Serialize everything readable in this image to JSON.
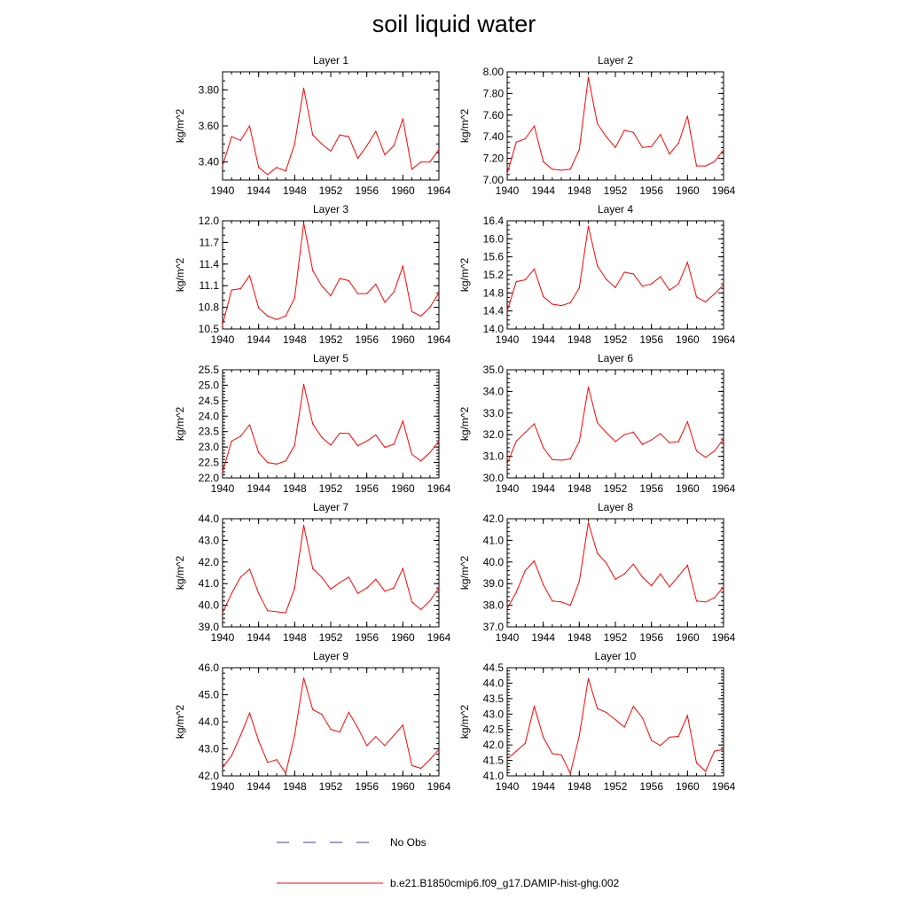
{
  "title": "soil liquid water",
  "legend": [
    {
      "label": "No Obs",
      "color": "#3b3bb8",
      "style": "dashed"
    },
    {
      "label": "b.e21.B1850cmip6.f09_g17.DAMIP-hist-ghg.002",
      "color": "#ff0000",
      "style": "solid"
    }
  ],
  "chart_data": [
    {
      "type": "line",
      "title": "Layer 1",
      "ylabel": "kg/m^2",
      "xlim": [
        1940,
        1964
      ],
      "ylim": [
        3.3,
        3.9
      ],
      "yticks": [
        3.4,
        3.6,
        3.8
      ],
      "ytick_labels": [
        "3.40",
        "3.60",
        "3.80"
      ],
      "yminor": 0.05,
      "xticks": [
        1940,
        1944,
        1948,
        1952,
        1956,
        1960,
        1964
      ],
      "xtick_labels": [
        "1940",
        "1944",
        "1948",
        "1952",
        "1956",
        "1960",
        "1964"
      ],
      "x": [
        1940,
        1941,
        1942,
        1943,
        1944,
        1945,
        1946,
        1947,
        1948,
        1949,
        1950,
        1951,
        1952,
        1953,
        1954,
        1955,
        1956,
        1957,
        1958,
        1959,
        1960,
        1961,
        1962,
        1963,
        1964
      ],
      "series": [
        {
          "name": "b.e21.B1850cmip6.f09_g17.DAMIP-hist-ghg.002",
          "color": "#ff0000",
          "values": [
            3.38,
            3.54,
            3.52,
            3.6,
            3.37,
            3.33,
            3.37,
            3.35,
            3.5,
            3.81,
            3.55,
            3.5,
            3.46,
            3.55,
            3.54,
            3.42,
            3.49,
            3.57,
            3.44,
            3.49,
            3.64,
            3.36,
            3.4,
            3.4,
            3.47
          ]
        }
      ]
    },
    {
      "type": "line",
      "title": "Layer 2",
      "ylabel": "kg/m^2",
      "xlim": [
        1940,
        1964
      ],
      "ylim": [
        7.0,
        8.0
      ],
      "yticks": [
        7.0,
        7.2,
        7.4,
        7.6,
        7.8,
        8.0
      ],
      "ytick_labels": [
        "7.00",
        "7.20",
        "7.40",
        "7.60",
        "7.80",
        "8.00"
      ],
      "yminor": 0.05,
      "xticks": [
        1940,
        1944,
        1948,
        1952,
        1956,
        1960,
        1964
      ],
      "xtick_labels": [
        "1940",
        "1944",
        "1948",
        "1952",
        "1956",
        "1960",
        "1964"
      ],
      "x": [
        1940,
        1941,
        1942,
        1943,
        1944,
        1945,
        1946,
        1947,
        1948,
        1949,
        1950,
        1951,
        1952,
        1953,
        1954,
        1955,
        1956,
        1957,
        1958,
        1959,
        1960,
        1961,
        1962,
        1963,
        1964
      ],
      "series": [
        {
          "name": "b.e21.B1850cmip6.f09_g17.DAMIP-hist-ghg.002",
          "color": "#ff0000",
          "values": [
            7.06,
            7.35,
            7.38,
            7.5,
            7.17,
            7.1,
            7.09,
            7.1,
            7.28,
            7.95,
            7.52,
            7.4,
            7.3,
            7.46,
            7.44,
            7.3,
            7.31,
            7.42,
            7.24,
            7.34,
            7.59,
            7.13,
            7.13,
            7.17,
            7.28
          ]
        }
      ]
    },
    {
      "type": "line",
      "title": "Layer 3",
      "ylabel": "kg/m^2",
      "xlim": [
        1940,
        1964
      ],
      "ylim": [
        10.5,
        12.0
      ],
      "yticks": [
        10.5,
        10.8,
        11.1,
        11.4,
        11.7,
        12.0
      ],
      "ytick_labels": [
        "10.5",
        "10.8",
        "11.1",
        "11.4",
        "11.7",
        "12.0"
      ],
      "yminor": 0.1,
      "xticks": [
        1940,
        1944,
        1948,
        1952,
        1956,
        1960,
        1964
      ],
      "xtick_labels": [
        "1940",
        "1944",
        "1948",
        "1952",
        "1956",
        "1960",
        "1964"
      ],
      "x": [
        1940,
        1941,
        1942,
        1943,
        1944,
        1945,
        1946,
        1947,
        1948,
        1949,
        1950,
        1951,
        1952,
        1953,
        1954,
        1955,
        1956,
        1957,
        1958,
        1959,
        1960,
        1961,
        1962,
        1963,
        1964
      ],
      "series": [
        {
          "name": "b.e21.B1850cmip6.f09_g17.DAMIP-hist-ghg.002",
          "color": "#ff0000",
          "values": [
            10.56,
            11.04,
            11.06,
            11.24,
            10.79,
            10.68,
            10.63,
            10.68,
            10.93,
            11.97,
            11.31,
            11.1,
            10.96,
            11.2,
            11.17,
            10.99,
            10.99,
            11.12,
            10.87,
            11.01,
            11.37,
            10.74,
            10.68,
            10.8,
            11.0
          ]
        }
      ]
    },
    {
      "type": "line",
      "title": "Layer 4",
      "ylabel": "kg/m^2",
      "xlim": [
        1940,
        1964
      ],
      "ylim": [
        14.0,
        16.4
      ],
      "yticks": [
        14.0,
        14.4,
        14.8,
        15.2,
        15.6,
        16.0,
        16.4
      ],
      "ytick_labels": [
        "14.0",
        "14.4",
        "14.8",
        "15.2",
        "15.6",
        "16.0",
        "16.4"
      ],
      "yminor": 0.1,
      "xticks": [
        1940,
        1944,
        1948,
        1952,
        1956,
        1960,
        1964
      ],
      "xtick_labels": [
        "1940",
        "1944",
        "1948",
        "1952",
        "1956",
        "1960",
        "1964"
      ],
      "x": [
        1940,
        1941,
        1942,
        1943,
        1944,
        1945,
        1946,
        1947,
        1948,
        1949,
        1950,
        1951,
        1952,
        1953,
        1954,
        1955,
        1956,
        1957,
        1958,
        1959,
        1960,
        1961,
        1962,
        1963,
        1964
      ],
      "series": [
        {
          "name": "b.e21.B1850cmip6.f09_g17.DAMIP-hist-ghg.002",
          "color": "#ff0000",
          "values": [
            14.4,
            15.05,
            15.09,
            15.33,
            14.72,
            14.55,
            14.52,
            14.58,
            14.91,
            16.28,
            15.4,
            15.1,
            14.92,
            15.26,
            15.22,
            14.95,
            15.0,
            15.16,
            14.86,
            15.0,
            15.48,
            14.71,
            14.6,
            14.78,
            14.98
          ]
        }
      ]
    },
    {
      "type": "line",
      "title": "Layer 5",
      "ylabel": "kg/m^2",
      "xlim": [
        1940,
        1964
      ],
      "ylim": [
        22.0,
        25.5
      ],
      "yticks": [
        22.0,
        22.5,
        23.0,
        23.5,
        24.0,
        24.5,
        25.0,
        25.5
      ],
      "ytick_labels": [
        "22.0",
        "22.5",
        "23.0",
        "23.5",
        "24.0",
        "24.5",
        "25.0",
        "25.5"
      ],
      "yminor": 0.1,
      "xticks": [
        1940,
        1944,
        1948,
        1952,
        1956,
        1960,
        1964
      ],
      "xtick_labels": [
        "1940",
        "1944",
        "1948",
        "1952",
        "1956",
        "1960",
        "1964"
      ],
      "x": [
        1940,
        1941,
        1942,
        1943,
        1944,
        1945,
        1946,
        1947,
        1948,
        1949,
        1950,
        1951,
        1952,
        1953,
        1954,
        1955,
        1956,
        1957,
        1958,
        1959,
        1960,
        1961,
        1962,
        1963,
        1964
      ],
      "series": [
        {
          "name": "b.e21.B1850cmip6.f09_g17.DAMIP-hist-ghg.002",
          "color": "#ff0000",
          "values": [
            22.2,
            23.19,
            23.35,
            23.72,
            22.82,
            22.5,
            22.45,
            22.55,
            23.06,
            25.03,
            23.75,
            23.32,
            23.06,
            23.45,
            23.44,
            23.04,
            23.19,
            23.39,
            22.99,
            23.09,
            23.84,
            22.76,
            22.55,
            22.82,
            23.19
          ]
        }
      ]
    },
    {
      "type": "line",
      "title": "Layer 6",
      "ylabel": "kg/m^2",
      "xlim": [
        1940,
        1964
      ],
      "ylim": [
        30.0,
        35.0
      ],
      "yticks": [
        30.0,
        31.0,
        32.0,
        33.0,
        34.0,
        35.0
      ],
      "ytick_labels": [
        "30.0",
        "31.0",
        "32.0",
        "33.0",
        "34.0",
        "35.0"
      ],
      "yminor": 0.2,
      "xticks": [
        1940,
        1944,
        1948,
        1952,
        1956,
        1960,
        1964
      ],
      "xtick_labels": [
        "1940",
        "1944",
        "1948",
        "1952",
        "1956",
        "1960",
        "1964"
      ],
      "x": [
        1940,
        1941,
        1942,
        1943,
        1944,
        1945,
        1946,
        1947,
        1948,
        1949,
        1950,
        1951,
        1952,
        1953,
        1954,
        1955,
        1956,
        1957,
        1958,
        1959,
        1960,
        1961,
        1962,
        1963,
        1964
      ],
      "series": [
        {
          "name": "b.e21.B1850cmip6.f09_g17.DAMIP-hist-ghg.002",
          "color": "#ff0000",
          "values": [
            30.65,
            31.7,
            32.1,
            32.5,
            31.4,
            30.85,
            30.82,
            30.88,
            31.68,
            34.2,
            32.55,
            32.1,
            31.68,
            32.0,
            32.12,
            31.55,
            31.76,
            32.05,
            31.63,
            31.68,
            32.6,
            31.25,
            30.95,
            31.25,
            31.8
          ]
        }
      ]
    },
    {
      "type": "line",
      "title": "Layer 7",
      "ylabel": "kg/m^2",
      "xlim": [
        1940,
        1964
      ],
      "ylim": [
        39.0,
        44.0
      ],
      "yticks": [
        39.0,
        40.0,
        41.0,
        42.0,
        43.0,
        44.0
      ],
      "ytick_labels": [
        "39.0",
        "40.0",
        "41.0",
        "42.0",
        "43.0",
        "44.0"
      ],
      "yminor": 0.2,
      "xticks": [
        1940,
        1944,
        1948,
        1952,
        1956,
        1960,
        1964
      ],
      "xtick_labels": [
        "1940",
        "1944",
        "1948",
        "1952",
        "1956",
        "1960",
        "1964"
      ],
      "x": [
        1940,
        1941,
        1942,
        1943,
        1944,
        1945,
        1946,
        1947,
        1948,
        1949,
        1950,
        1951,
        1952,
        1953,
        1954,
        1955,
        1956,
        1957,
        1958,
        1959,
        1960,
        1961,
        1962,
        1963,
        1964
      ],
      "series": [
        {
          "name": "b.e21.B1850cmip6.f09_g17.DAMIP-hist-ghg.002",
          "color": "#ff0000",
          "values": [
            39.65,
            40.55,
            41.3,
            41.67,
            40.55,
            39.75,
            39.7,
            39.65,
            40.8,
            43.7,
            41.7,
            41.3,
            40.75,
            41.05,
            41.3,
            40.55,
            40.8,
            41.2,
            40.65,
            40.8,
            41.7,
            40.15,
            39.8,
            40.2,
            40.8
          ]
        }
      ]
    },
    {
      "type": "line",
      "title": "Layer 8",
      "ylabel": "kg/m^2",
      "xlim": [
        1940,
        1964
      ],
      "ylim": [
        37.0,
        42.0
      ],
      "yticks": [
        37.0,
        38.0,
        39.0,
        40.0,
        41.0,
        42.0
      ],
      "ytick_labels": [
        "37.0",
        "38.0",
        "39.0",
        "40.0",
        "41.0",
        "42.0"
      ],
      "yminor": 0.2,
      "xticks": [
        1940,
        1944,
        1948,
        1952,
        1956,
        1960,
        1964
      ],
      "xtick_labels": [
        "1940",
        "1944",
        "1948",
        "1952",
        "1956",
        "1960",
        "1964"
      ],
      "x": [
        1940,
        1941,
        1942,
        1943,
        1944,
        1945,
        1946,
        1947,
        1948,
        1949,
        1950,
        1951,
        1952,
        1953,
        1954,
        1955,
        1956,
        1957,
        1958,
        1959,
        1960,
        1961,
        1962,
        1963,
        1964
      ],
      "series": [
        {
          "name": "b.e21.B1850cmip6.f09_g17.DAMIP-hist-ghg.002",
          "color": "#ff0000",
          "values": [
            37.85,
            38.6,
            39.6,
            40.05,
            38.95,
            38.2,
            38.15,
            38.0,
            39.1,
            41.82,
            40.4,
            39.95,
            39.2,
            39.45,
            39.9,
            39.3,
            38.9,
            39.45,
            38.85,
            39.35,
            39.85,
            38.2,
            38.15,
            38.35,
            38.85
          ]
        }
      ]
    },
    {
      "type": "line",
      "title": "Layer 9",
      "ylabel": "kg/m^2",
      "xlim": [
        1940,
        1964
      ],
      "ylim": [
        42.0,
        46.0
      ],
      "yticks": [
        42.0,
        43.0,
        44.0,
        45.0,
        46.0
      ],
      "ytick_labels": [
        "42.0",
        "43.0",
        "44.0",
        "45.0",
        "46.0"
      ],
      "yminor": 0.2,
      "xticks": [
        1940,
        1944,
        1948,
        1952,
        1956,
        1960,
        1964
      ],
      "xtick_labels": [
        "1940",
        "1944",
        "1948",
        "1952",
        "1956",
        "1960",
        "1964"
      ],
      "x": [
        1940,
        1941,
        1942,
        1943,
        1944,
        1945,
        1946,
        1947,
        1948,
        1949,
        1950,
        1951,
        1952,
        1953,
        1954,
        1955,
        1956,
        1957,
        1958,
        1959,
        1960,
        1961,
        1962,
        1963,
        1964
      ],
      "series": [
        {
          "name": "b.e21.B1850cmip6.f09_g17.DAMIP-hist-ghg.002",
          "color": "#ff0000",
          "values": [
            42.3,
            42.75,
            43.5,
            44.32,
            43.3,
            42.5,
            42.6,
            42.1,
            43.5,
            45.62,
            44.45,
            44.28,
            43.72,
            43.62,
            44.35,
            43.78,
            43.12,
            43.45,
            43.12,
            43.5,
            43.88,
            42.38,
            42.28,
            42.6,
            42.98
          ]
        }
      ]
    },
    {
      "type": "line",
      "title": "Layer 10",
      "ylabel": "kg/m^2",
      "xlim": [
        1940,
        1964
      ],
      "ylim": [
        41.0,
        44.5
      ],
      "yticks": [
        41.0,
        41.5,
        42.0,
        42.5,
        43.0,
        43.5,
        44.0,
        44.5
      ],
      "ytick_labels": [
        "41.0",
        "41.5",
        "42.0",
        "42.5",
        "43.0",
        "43.5",
        "44.0",
        "44.5"
      ],
      "yminor": 0.1,
      "xticks": [
        1940,
        1944,
        1948,
        1952,
        1956,
        1960,
        1964
      ],
      "xtick_labels": [
        "1940",
        "1944",
        "1948",
        "1952",
        "1956",
        "1960",
        "1964"
      ],
      "x": [
        1940,
        1941,
        1942,
        1943,
        1944,
        1945,
        1946,
        1947,
        1948,
        1949,
        1950,
        1951,
        1952,
        1953,
        1954,
        1955,
        1956,
        1957,
        1958,
        1959,
        1960,
        1961,
        1962,
        1963,
        1964
      ],
      "series": [
        {
          "name": "b.e21.B1850cmip6.f09_g17.DAMIP-hist-ghg.002",
          "color": "#ff0000",
          "values": [
            41.55,
            41.8,
            42.05,
            43.25,
            42.25,
            41.72,
            41.68,
            41.08,
            42.3,
            44.15,
            43.18,
            43.05,
            42.82,
            42.58,
            43.25,
            42.88,
            42.15,
            41.98,
            42.25,
            42.28,
            42.95,
            41.42,
            41.15,
            41.8,
            41.86
          ]
        }
      ]
    }
  ]
}
